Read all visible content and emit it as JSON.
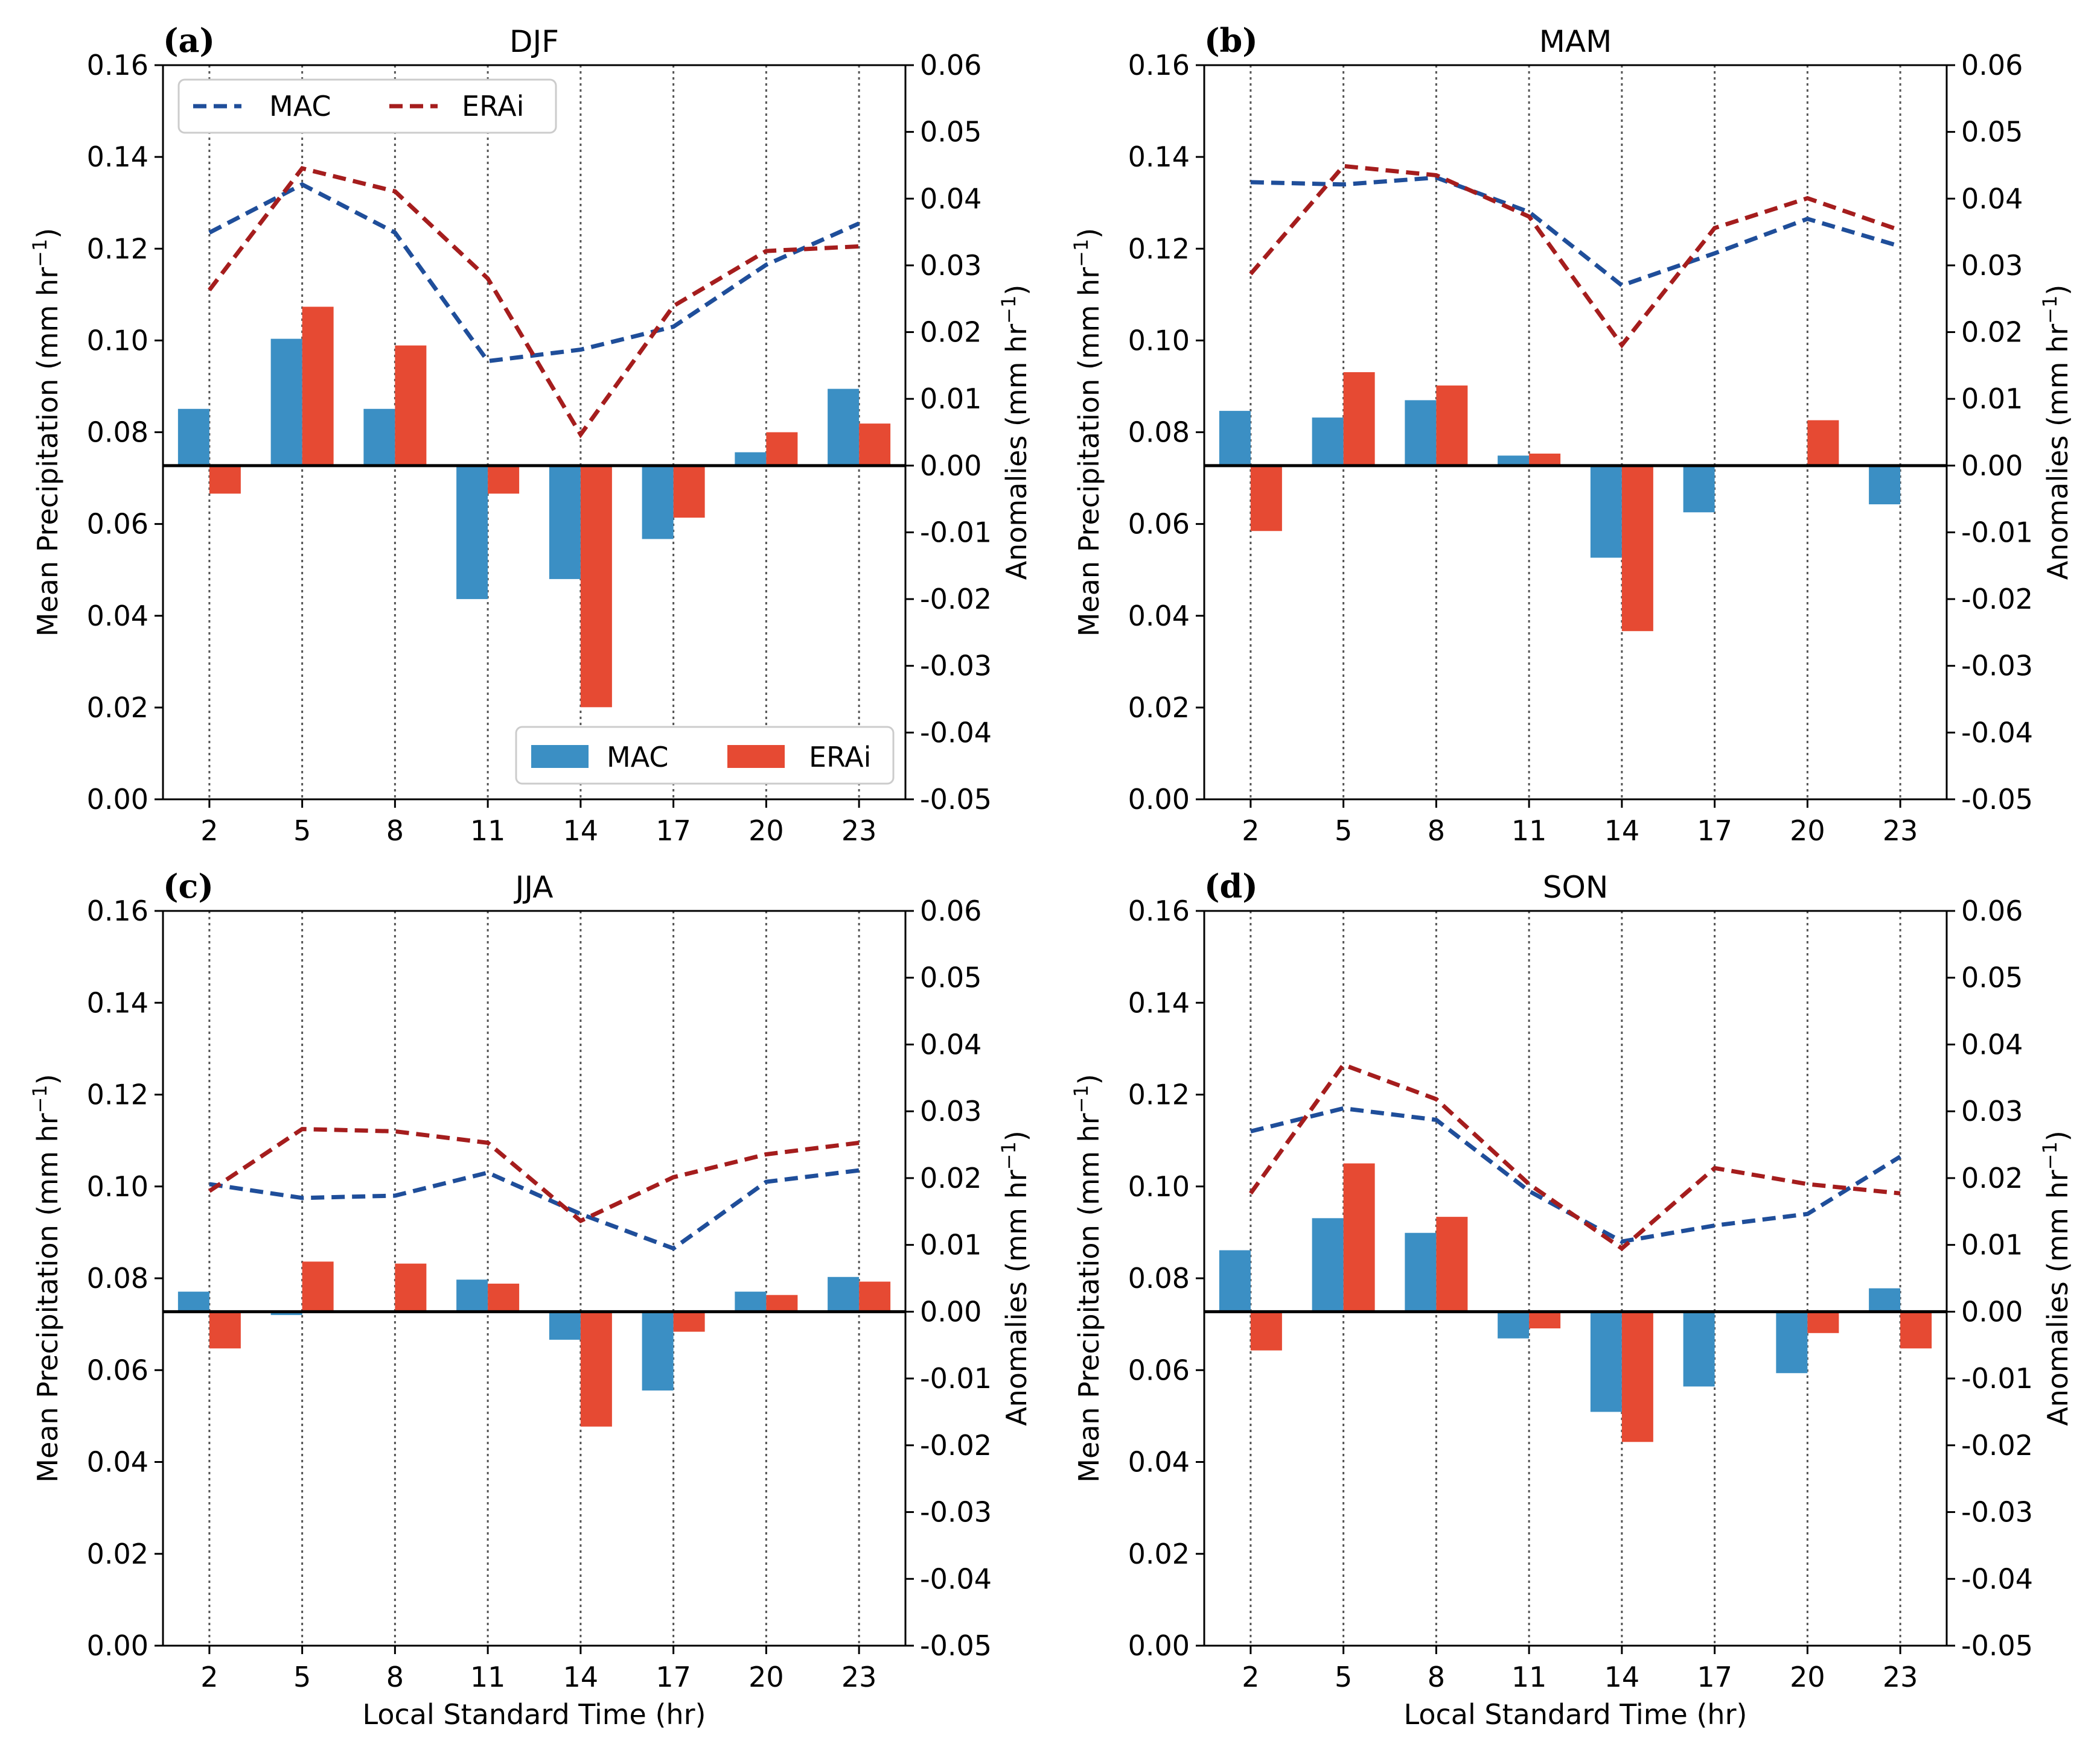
{
  "colors": {
    "mac_bar": "#3B8FC4",
    "erai_bar": "#E64A33",
    "mac_line": "#1F4E9A",
    "erai_line": "#A51D1D"
  },
  "legend": {
    "line_mac": "MAC",
    "line_erai": "ERAi",
    "bar_mac": "MAC",
    "bar_erai": "ERAi"
  },
  "xlabel": "Local Standard Time (hr)",
  "ylabel_left": "Mean Precipitation (mm hr",
  "ylabel_right": "Anomalies (mm hr",
  "ylabel_unit_sup": "−1",
  "ylabel_close": ")",
  "left_ticks": [
    "0.00",
    "0.02",
    "0.04",
    "0.06",
    "0.08",
    "0.10",
    "0.12",
    "0.14",
    "0.16"
  ],
  "right_ticks": [
    "-0.05",
    "-0.04",
    "-0.03",
    "-0.02",
    "-0.01",
    "0.00",
    "0.01",
    "0.02",
    "0.03",
    "0.04",
    "0.05",
    "0.06"
  ],
  "chart_data": [
    {
      "type": "bar+line",
      "letter": "(a)",
      "title": "DJF",
      "categories": [
        "2",
        "5",
        "8",
        "11",
        "14",
        "17",
        "20",
        "23"
      ],
      "left_ylim": [
        0,
        0.16
      ],
      "right_ylim": [
        -0.05,
        0.06
      ],
      "series": [
        {
          "name": "MAC",
          "kind": "line",
          "axis": "left",
          "values": [
            0.1235,
            0.134,
            0.1235,
            0.0955,
            0.098,
            0.103,
            0.1165,
            0.1255
          ]
        },
        {
          "name": "ERAi",
          "kind": "line",
          "axis": "left",
          "values": [
            0.111,
            0.1375,
            0.1325,
            0.1135,
            0.0795,
            0.1075,
            0.1195,
            0.1205
          ]
        },
        {
          "name": "MAC",
          "kind": "bar",
          "axis": "right",
          "values": [
            0.0085,
            0.019,
            0.0085,
            -0.02,
            -0.017,
            -0.011,
            0.002,
            0.0115
          ]
        },
        {
          "name": "ERAi",
          "kind": "bar",
          "axis": "right",
          "values": [
            -0.0042,
            0.0238,
            0.018,
            -0.0042,
            -0.0362,
            -0.0078,
            0.005,
            0.0063
          ]
        }
      ]
    },
    {
      "type": "bar+line",
      "letter": "(b)",
      "title": "MAM",
      "categories": [
        "2",
        "5",
        "8",
        "11",
        "14",
        "17",
        "20",
        "23"
      ],
      "left_ylim": [
        0,
        0.16
      ],
      "right_ylim": [
        -0.05,
        0.06
      ],
      "series": [
        {
          "name": "MAC",
          "kind": "line",
          "axis": "left",
          "values": [
            0.1345,
            0.134,
            0.1355,
            0.128,
            0.112,
            0.119,
            0.1265,
            0.1205
          ]
        },
        {
          "name": "ERAi",
          "kind": "line",
          "axis": "left",
          "values": [
            0.1145,
            0.138,
            0.136,
            0.127,
            0.099,
            0.1245,
            0.131,
            0.124
          ]
        },
        {
          "name": "MAC",
          "kind": "bar",
          "axis": "right",
          "values": [
            0.0082,
            0.0072,
            0.0098,
            0.0015,
            -0.0138,
            -0.007,
            0.0,
            -0.0058
          ]
        },
        {
          "name": "ERAi",
          "kind": "bar",
          "axis": "right",
          "values": [
            -0.0098,
            0.014,
            0.012,
            0.0018,
            -0.0248,
            0.0,
            0.0068,
            0.0
          ]
        }
      ]
    },
    {
      "type": "bar+line",
      "letter": "(c)",
      "title": "JJA",
      "categories": [
        "2",
        "5",
        "8",
        "11",
        "14",
        "17",
        "20",
        "23"
      ],
      "left_ylim": [
        0,
        0.16
      ],
      "right_ylim": [
        -0.05,
        0.06
      ],
      "series": [
        {
          "name": "MAC",
          "kind": "line",
          "axis": "left",
          "values": [
            0.1005,
            0.0975,
            0.098,
            0.103,
            0.094,
            0.0865,
            0.101,
            0.1035
          ]
        },
        {
          "name": "ERAi",
          "kind": "line",
          "axis": "left",
          "values": [
            0.099,
            0.1125,
            0.112,
            0.1095,
            0.0925,
            0.102,
            0.107,
            0.1095
          ]
        },
        {
          "name": "MAC",
          "kind": "bar",
          "axis": "right",
          "values": [
            0.003,
            -0.0005,
            0.0,
            0.0048,
            -0.0042,
            -0.0118,
            0.003,
            0.0052
          ]
        },
        {
          "name": "ERAi",
          "kind": "bar",
          "axis": "right",
          "values": [
            -0.0055,
            0.0075,
            0.0072,
            0.0042,
            -0.0172,
            -0.003,
            0.0025,
            0.0045
          ]
        }
      ]
    },
    {
      "type": "bar+line",
      "letter": "(d)",
      "title": "SON",
      "categories": [
        "2",
        "5",
        "8",
        "11",
        "14",
        "17",
        "20",
        "23"
      ],
      "left_ylim": [
        0,
        0.16
      ],
      "right_ylim": [
        -0.05,
        0.06
      ],
      "series": [
        {
          "name": "MAC",
          "kind": "line",
          "axis": "left",
          "values": [
            0.112,
            0.117,
            0.1145,
            0.099,
            0.088,
            0.0915,
            0.094,
            0.1065
          ]
        },
        {
          "name": "ERAi",
          "kind": "line",
          "axis": "left",
          "values": [
            0.0985,
            0.1265,
            0.119,
            0.1005,
            0.0865,
            0.104,
            0.1005,
            0.0985
          ]
        },
        {
          "name": "MAC",
          "kind": "bar",
          "axis": "right",
          "values": [
            0.0092,
            0.014,
            0.0118,
            -0.004,
            -0.015,
            -0.0112,
            -0.0092,
            0.0035
          ]
        },
        {
          "name": "ERAi",
          "kind": "bar",
          "axis": "right",
          "values": [
            -0.0058,
            0.0222,
            0.0142,
            -0.0025,
            -0.0195,
            0.0,
            -0.0032,
            -0.0055
          ]
        }
      ]
    }
  ]
}
